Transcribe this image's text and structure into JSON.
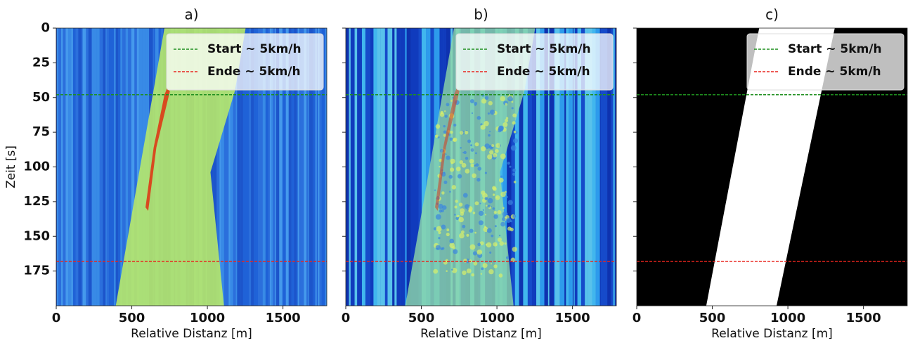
{
  "chart_data": [
    {
      "type": "heatmap",
      "title": "a)",
      "xlabel": "Relative Distanz [m]",
      "ylabel": "Zeit [s]",
      "xlim": [
        0,
        1790
      ],
      "xticks": [
        0,
        500,
        1000,
        1500
      ],
      "ylim": [
        200,
        0
      ],
      "yticks": [
        0,
        25,
        50,
        75,
        100,
        125,
        150,
        175
      ],
      "ytick_labels": true,
      "hlines": [
        {
          "name": "Start ~ 5km/h",
          "color": "#1f8f1f",
          "y": 48
        },
        {
          "name": "Ende ~ 5km/h",
          "color": "#e8251e",
          "y": 168
        }
      ],
      "legend": "upper right"
    },
    {
      "type": "heatmap",
      "title": "b)",
      "xlabel": "Relative Distanz [m]",
      "xlim": [
        0,
        1790
      ],
      "xticks": [
        0,
        500,
        1000,
        1500
      ],
      "ylim": [
        200,
        0
      ],
      "yticks": [
        0,
        25,
        50,
        75,
        100,
        125,
        150,
        175
      ],
      "ytick_labels": false,
      "hlines": [
        {
          "name": "Start ~ 5km/h",
          "color": "#1f8f1f",
          "y": 48
        },
        {
          "name": "Ende ~ 5km/h",
          "color": "#e8251e",
          "y": 168
        }
      ],
      "legend": "upper right"
    },
    {
      "type": "mask",
      "title": "c)",
      "xlabel": "Relative Distanz [m]",
      "xlim": [
        0,
        1790
      ],
      "xticks": [
        0,
        500,
        1000,
        1500
      ],
      "ylim": [
        200,
        0
      ],
      "yticks": [
        0,
        25,
        50,
        75,
        100,
        125,
        150,
        175
      ],
      "ytick_labels": false,
      "background": "#000000",
      "band": {
        "t": [
          0,
          200
        ],
        "left": [
          810,
          460
        ],
        "right": [
          1310,
          925
        ],
        "color": "#ffffff"
      },
      "hlines": [
        {
          "name": "Start ~ 5km/h",
          "color": "#1f8f1f",
          "y": 48
        },
        {
          "name": "Ende ~ 5km/h",
          "color": "#e8251e",
          "y": 168
        }
      ],
      "legend": "upper right"
    }
  ]
}
